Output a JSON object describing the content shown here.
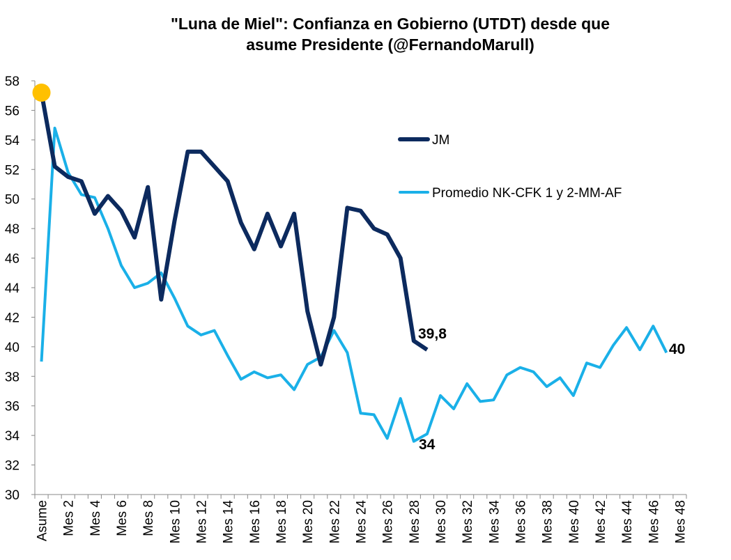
{
  "chart_data": {
    "type": "line",
    "title": [
      "\"Luna de Miel\": Confianza en Gobierno (UTDT) desde que",
      "asume Presidente (@FernandoMarull)"
    ],
    "categories": [
      "Asume",
      null,
      "Mes 2",
      null,
      "Mes 4",
      null,
      "Mes 6",
      null,
      "Mes 8",
      null,
      "Mes 10",
      null,
      "Mes 12",
      null,
      "Mes 14",
      null,
      "Mes 16",
      null,
      "Mes 18",
      null,
      "Mes 20",
      null,
      "Mes 22",
      null,
      "Mes 24",
      null,
      "Mes 26",
      null,
      "Mes 28",
      null,
      "Mes 30",
      null,
      "Mes 32",
      null,
      "Mes 34",
      null,
      "Mes 36",
      null,
      "Mes 38",
      null,
      "Mes 40",
      null,
      "Mes 42",
      null,
      "Mes 44",
      null,
      "Mes 46",
      null,
      "Mes 48"
    ],
    "series": [
      {
        "name": "JM",
        "color": "#0c2a5e",
        "values": [
          57.2,
          52.2,
          51.5,
          51.2,
          49.0,
          50.2,
          49.2,
          47.4,
          50.8,
          43.2,
          48.5,
          53.2,
          53.2,
          52.2,
          51.2,
          48.4,
          46.6,
          49.0,
          46.8,
          49.0,
          42.4,
          38.8,
          42.0,
          49.4,
          49.2,
          48.0,
          47.6,
          46.0,
          40.4,
          39.8,
          null,
          null,
          null,
          null,
          null,
          null,
          null,
          null,
          null,
          null,
          null,
          null,
          null,
          null,
          null,
          null,
          null,
          null,
          null
        ]
      },
      {
        "name": "Promedio NK-CFK 1 y 2-MM-AF",
        "color": "#1ab0e8",
        "values": [
          39.0,
          54.8,
          51.8,
          50.3,
          50.1,
          48.0,
          45.5,
          44.0,
          44.3,
          45.0,
          43.3,
          41.4,
          40.8,
          41.1,
          39.4,
          37.8,
          38.3,
          37.9,
          38.1,
          37.1,
          38.8,
          39.3,
          41.1,
          39.6,
          35.5,
          35.4,
          33.8,
          36.5,
          33.6,
          34.1,
          36.7,
          35.8,
          37.5,
          36.3,
          36.4,
          38.1,
          38.6,
          38.3,
          37.3,
          37.9,
          36.7,
          38.9,
          38.6,
          40.1,
          41.3,
          39.8,
          41.4,
          39.6,
          null
        ]
      }
    ],
    "highlight_color": "#ffc000",
    "annotations": [
      "39,8",
      "34",
      "40"
    ],
    "ylim": [
      30,
      58
    ],
    "yticks": [
      30,
      32,
      34,
      36,
      38,
      40,
      42,
      44,
      46,
      48,
      50,
      52,
      54,
      56,
      58
    ],
    "grid": false
  }
}
